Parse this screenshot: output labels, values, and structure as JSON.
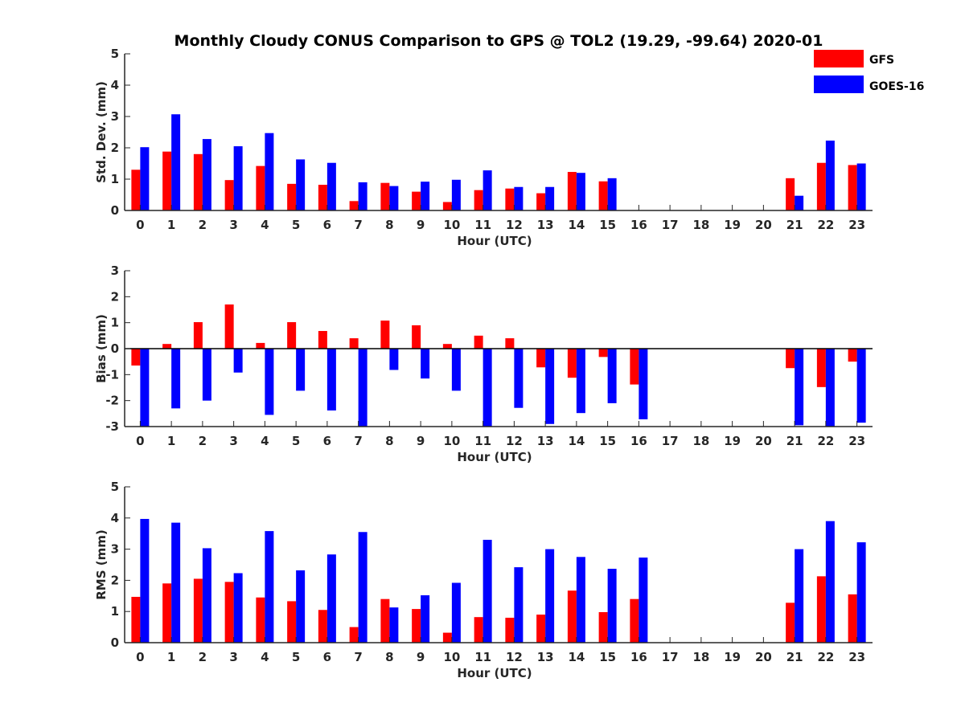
{
  "chart_data": {
    "type": "bar",
    "title": "Monthly Cloudy CONUS Comparison to GPS @ TOL2 (19.29, -99.64) 2020-01",
    "legend": {
      "placement": "top-right",
      "entries": [
        {
          "name": "GFS",
          "color": "#ff0000"
        },
        {
          "name": "GOES-16",
          "color": "#0000ff"
        }
      ]
    },
    "categories": [
      "0",
      "1",
      "2",
      "3",
      "4",
      "5",
      "6",
      "7",
      "8",
      "9",
      "10",
      "11",
      "12",
      "13",
      "14",
      "15",
      "16",
      "17",
      "18",
      "19",
      "20",
      "21",
      "22",
      "23"
    ],
    "panels": [
      {
        "ylabel": "Std. Dev. (mm)",
        "xlabel": "Hour (UTC)",
        "ylim": [
          0,
          5
        ],
        "yticks": [
          "0",
          "1",
          "2",
          "3",
          "4",
          "5"
        ],
        "series": [
          {
            "name": "GFS",
            "color": "#ff0000",
            "values": [
              1.3,
              1.88,
              1.8,
              0.97,
              1.42,
              0.85,
              0.82,
              0.3,
              0.88,
              0.6,
              0.27,
              0.65,
              0.7,
              0.55,
              1.23,
              0.93,
              null,
              null,
              null,
              null,
              null,
              1.03,
              1.52,
              1.45
            ]
          },
          {
            "name": "GOES-16",
            "color": "#0000ff",
            "values": [
              2.02,
              3.07,
              2.28,
              2.05,
              2.47,
              1.63,
              1.52,
              0.9,
              0.78,
              0.92,
              0.98,
              1.28,
              0.75,
              0.75,
              1.2,
              1.03,
              null,
              null,
              null,
              null,
              null,
              0.47,
              2.23,
              1.5
            ]
          }
        ]
      },
      {
        "ylabel": "Bias (mm)",
        "xlabel": "Hour (UTC)",
        "ylim": [
          -3,
          3
        ],
        "yticks": [
          "-3",
          "-2",
          "-1",
          "0",
          "1",
          "2",
          "3"
        ],
        "zero_line": true,
        "series": [
          {
            "name": "GFS",
            "color": "#ff0000",
            "values": [
              -0.65,
              0.18,
              1.02,
              1.7,
              0.22,
              1.02,
              0.68,
              0.4,
              1.08,
              0.9,
              0.18,
              0.5,
              0.4,
              -0.72,
              -1.12,
              -0.32,
              -1.38,
              null,
              null,
              null,
              null,
              -0.75,
              -1.48,
              -0.5
            ]
          },
          {
            "name": "GOES-16",
            "color": "#0000ff",
            "values": [
              -3.0,
              -2.3,
              -2.0,
              -0.92,
              -2.55,
              -1.62,
              -2.38,
              -3.0,
              -0.82,
              -1.15,
              -1.62,
              -3.0,
              -2.28,
              -2.9,
              -2.48,
              -2.1,
              -2.72,
              null,
              null,
              null,
              null,
              -2.95,
              -3.0,
              -2.85
            ]
          }
        ]
      },
      {
        "ylabel": "RMS (mm)",
        "xlabel": "Hour (UTC)",
        "ylim": [
          0,
          5
        ],
        "yticks": [
          "0",
          "1",
          "2",
          "3",
          "4",
          "5"
        ],
        "series": [
          {
            "name": "GFS",
            "color": "#ff0000",
            "values": [
              1.47,
              1.9,
              2.05,
              1.95,
              1.45,
              1.33,
              1.05,
              0.5,
              1.4,
              1.08,
              0.32,
              0.82,
              0.8,
              0.9,
              1.67,
              0.98,
              1.4,
              null,
              null,
              null,
              null,
              1.28,
              2.13,
              1.55
            ]
          },
          {
            "name": "GOES-16",
            "color": "#0000ff",
            "values": [
              3.97,
              3.85,
              3.03,
              2.23,
              3.58,
              2.32,
              2.83,
              3.55,
              1.13,
              1.52,
              1.92,
              3.3,
              2.42,
              3.0,
              2.75,
              2.37,
              2.73,
              null,
              null,
              null,
              null,
              3.0,
              3.9,
              3.22
            ]
          }
        ]
      }
    ]
  }
}
